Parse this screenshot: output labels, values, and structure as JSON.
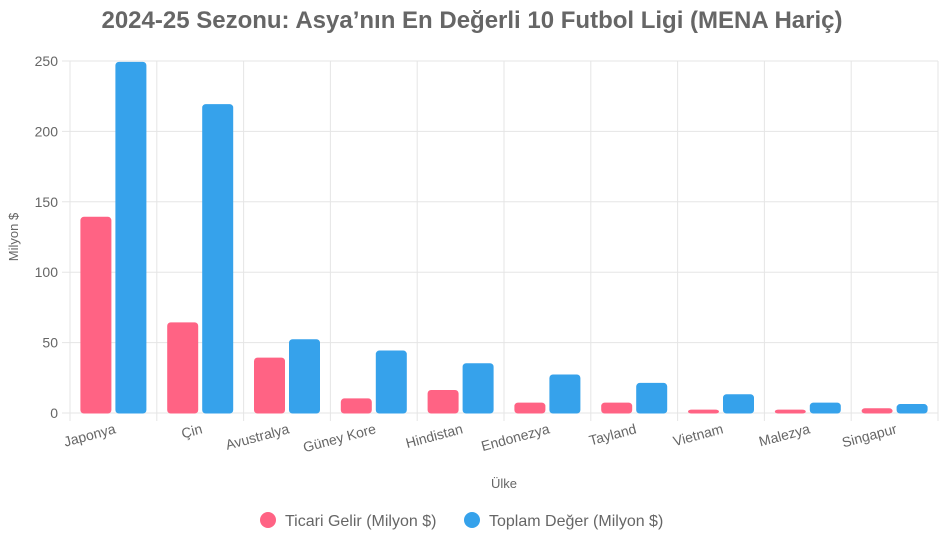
{
  "chart_data": {
    "type": "bar",
    "title": "2024-25 Sezonu: Asya’nın En Değerli 10 Futbol Ligi (MENA Hariç)",
    "xlabel": "Ülke",
    "ylabel": "Milyon $",
    "ylim": [
      0,
      250
    ],
    "yticks": [
      "0",
      "50",
      "100",
      "150",
      "200",
      "250"
    ],
    "categories": [
      "Japonya",
      "Çin",
      "Avustralya",
      "Güney Kore",
      "Hindistan",
      "Endonezya",
      "Tayland",
      "Vietnam",
      "Malezya",
      "Singapur"
    ],
    "series": [
      {
        "name": "Ticari Gelir (Milyon $)",
        "color": "#ff6384",
        "values": [
          139,
          64,
          39,
          10,
          16,
          7,
          7,
          2,
          2,
          3
        ]
      },
      {
        "name": "Toplam Değer (Milyon $)",
        "color": "#36a2eb",
        "values": [
          249,
          219,
          52,
          44,
          35,
          27,
          21,
          13,
          7,
          6
        ]
      }
    ],
    "grid": true,
    "legend": "bottom"
  }
}
